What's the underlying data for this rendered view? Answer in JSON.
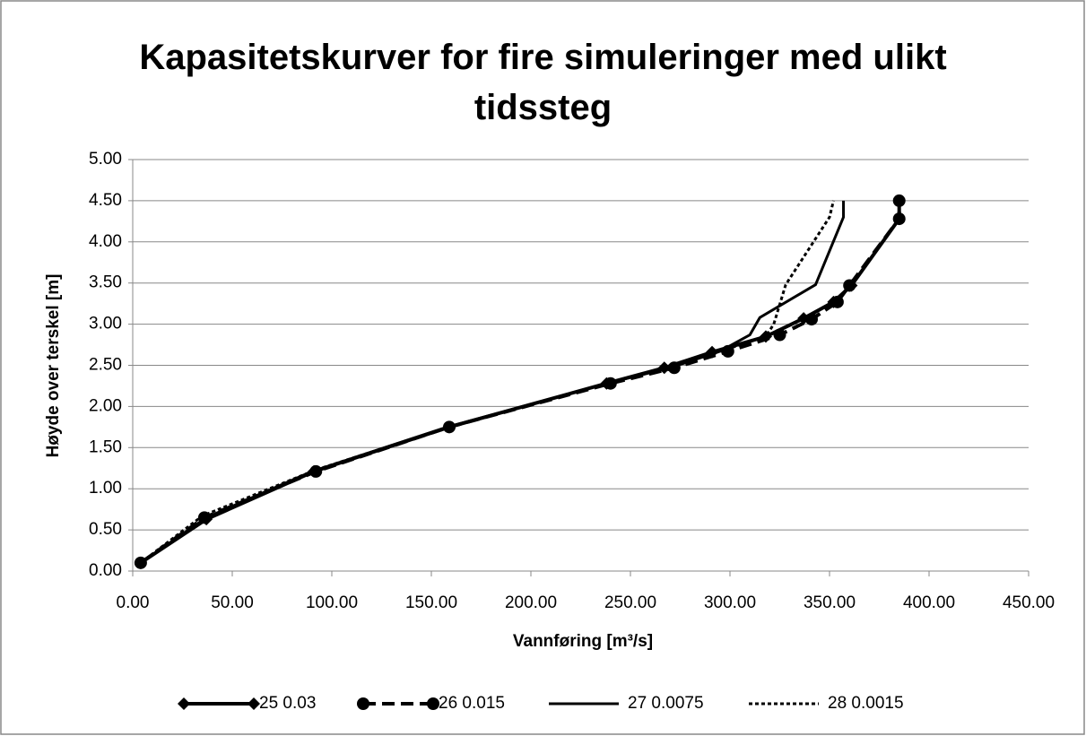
{
  "chart_data": {
    "type": "line",
    "title": "Kapasitetskurver for fire simuleringer med ulikt tidssteg",
    "xlabel": "Vannføring [m³/s]",
    "ylabel": "Høyde over terskel [m]",
    "xlim": [
      0,
      450
    ],
    "ylim": [
      0,
      5
    ],
    "xticks": [
      {
        "value": 0,
        "label": "0.00"
      },
      {
        "value": 50,
        "label": "50.00"
      },
      {
        "value": 100,
        "label": "100.00"
      },
      {
        "value": 150,
        "label": "150.00"
      },
      {
        "value": 200,
        "label": "200.00"
      },
      {
        "value": 250,
        "label": "250.00"
      },
      {
        "value": 300,
        "label": "300.00"
      },
      {
        "value": 350,
        "label": "350.00"
      },
      {
        "value": 400,
        "label": "400.00"
      },
      {
        "value": 450,
        "label": "450.00"
      }
    ],
    "yticks": [
      {
        "value": 0,
        "label": "0.00"
      },
      {
        "value": 0.5,
        "label": "0.50"
      },
      {
        "value": 1,
        "label": "1.00"
      },
      {
        "value": 1.5,
        "label": "1.50"
      },
      {
        "value": 2,
        "label": "2.00"
      },
      {
        "value": 2.5,
        "label": "2.50"
      },
      {
        "value": 3,
        "label": "3.00"
      },
      {
        "value": 3.5,
        "label": "3.50"
      },
      {
        "value": 4,
        "label": "4.00"
      },
      {
        "value": 4.5,
        "label": "4.50"
      },
      {
        "value": 5,
        "label": "5.00"
      }
    ],
    "grid": true,
    "legend": "bottom",
    "series": [
      {
        "name": "25 0.03",
        "color": "#000000",
        "marker": "diamond",
        "line_style": "solid",
        "line_width": 4,
        "x": [
          4,
          37,
          91,
          159,
          238,
          267,
          291,
          318,
          337,
          352,
          361,
          385,
          385
        ],
        "values": [
          0.1,
          0.63,
          1.21,
          1.75,
          2.28,
          2.47,
          2.66,
          2.85,
          3.07,
          3.27,
          3.47,
          4.28,
          4.5
        ]
      },
      {
        "name": "26 0.015",
        "color": "#000000",
        "marker": "circle",
        "line_style": "dashed",
        "line_width": 4,
        "x": [
          4,
          36,
          92,
          159,
          240,
          272,
          299,
          325,
          341,
          354,
          360,
          385,
          385
        ],
        "values": [
          0.1,
          0.65,
          1.21,
          1.75,
          2.28,
          2.47,
          2.67,
          2.87,
          3.06,
          3.27,
          3.47,
          4.28,
          4.5
        ]
      },
      {
        "name": "27 0.0075",
        "color": "#000000",
        "marker": "none",
        "line_style": "solid",
        "line_width": 3,
        "x": [
          4,
          37,
          90,
          158,
          238,
          270,
          295,
          310,
          315,
          343,
          357,
          357
        ],
        "values": [
          0.1,
          0.65,
          1.21,
          1.75,
          2.28,
          2.47,
          2.67,
          2.87,
          3.08,
          3.48,
          4.3,
          4.5
        ]
      },
      {
        "name": "28 0.0015",
        "color": "#000000",
        "marker": "none",
        "line_style": "dotted",
        "line_width": 3,
        "x": [
          4,
          35,
          92,
          159,
          238,
          268,
          295,
          318,
          322,
          328,
          350,
          352
        ],
        "values": [
          0.1,
          0.67,
          1.23,
          1.75,
          2.28,
          2.47,
          2.67,
          2.85,
          3.0,
          3.48,
          4.3,
          4.5
        ]
      }
    ]
  }
}
